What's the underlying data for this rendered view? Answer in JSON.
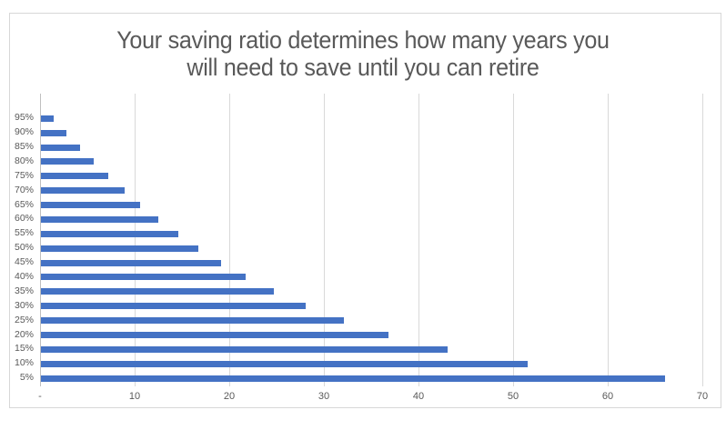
{
  "chart_data": {
    "type": "bar",
    "orientation": "horizontal",
    "title": "Your saving ratio determines how many years you will need to save until you can retire",
    "title_lines": [
      "Your saving ratio determines how many years you",
      "will need to save until you can retire"
    ],
    "categories": [
      "95%",
      "90%",
      "85%",
      "80%",
      "75%",
      "70%",
      "65%",
      "60%",
      "55%",
      "50%",
      "45%",
      "40%",
      "35%",
      "30%",
      "25%",
      "20%",
      "15%",
      "10%",
      "5%"
    ],
    "values": [
      1.3,
      2.7,
      4.1,
      5.6,
      7.1,
      8.8,
      10.5,
      12.4,
      14.5,
      16.6,
      19.0,
      21.6,
      24.6,
      28.0,
      32.0,
      36.7,
      43.0,
      51.4,
      66.0
    ],
    "xlabel": "",
    "ylabel": "",
    "xlim": [
      0,
      70
    ],
    "xticks": [
      0,
      10,
      20,
      30,
      40,
      50,
      60,
      70
    ],
    "xtick_labels": [
      "-",
      "10",
      "20",
      "30",
      "40",
      "50",
      "60",
      "70"
    ],
    "grid": true,
    "legend": false,
    "bar_color": "#4472C4",
    "gridline_color": "#D9D9D9",
    "axis_line_color": "#BFBFBF",
    "label_color": "#595959",
    "title_color": "#595959",
    "background_color": "#FFFFFF",
    "frame_border_color": "#D7D7D7"
  }
}
